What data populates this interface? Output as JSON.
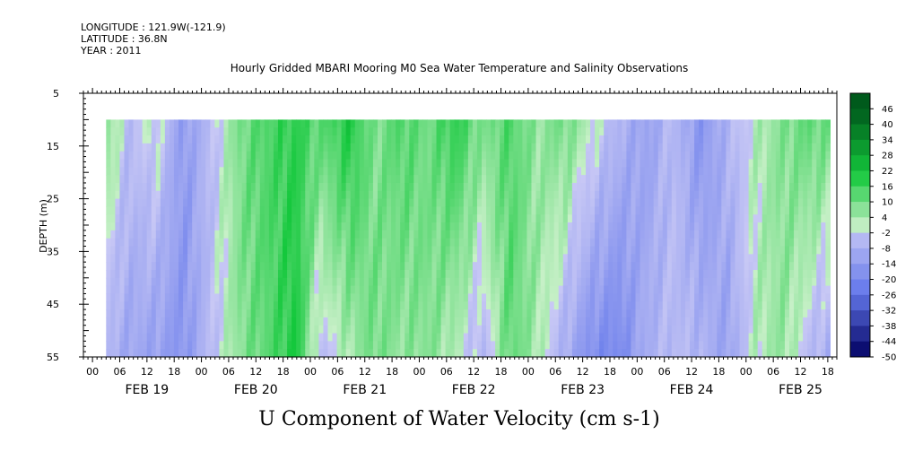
{
  "header": {
    "longitude": "LONGITUDE : 121.9W(-121.9)",
    "latitude": "LATITUDE : 36.8N",
    "year": "YEAR : 2011"
  },
  "chart_data": {
    "type": "heatmap",
    "title": "Hourly Gridded MBARI Mooring M0 Sea Water Temperature and Salinity Observations",
    "xlabel": "U Component of Water Velocity (cm s-1)",
    "ylabel": "DEPTH (m)",
    "ylim": [
      55,
      5
    ],
    "y_ticks": [
      5,
      15,
      25,
      35,
      45,
      55
    ],
    "data_depth_range": [
      10,
      55
    ],
    "x_hour_ticks": [
      "00",
      "06",
      "12",
      "18",
      "00",
      "06",
      "12",
      "18",
      "00",
      "06",
      "12",
      "18",
      "00",
      "06",
      "12",
      "18",
      "00",
      "06",
      "12",
      "18",
      "00",
      "06",
      "12",
      "18",
      "00",
      "06",
      "12",
      "18"
    ],
    "x_day_labels": [
      "FEB 19",
      "FEB 20",
      "FEB 21",
      "FEB 22",
      "FEB 23",
      "FEB 24",
      "FEB 25"
    ],
    "time_range_hours": [
      -2,
      164
    ],
    "data_start_hour": 3,
    "data_end_hour": 162.5,
    "colorbar": {
      "levels": [
        46,
        40,
        34,
        28,
        22,
        16,
        10,
        4,
        -2,
        -8,
        -14,
        -20,
        -26,
        -32,
        -38,
        -44,
        -50
      ],
      "max_color": "#005a1c",
      "zero_color": "#c8f0c8",
      "min_color": "#000060"
    },
    "approx_profile": {
      "description_hours": [
        3,
        8,
        14,
        20,
        26,
        33,
        38,
        45,
        50,
        57,
        62,
        68,
        74,
        80,
        86,
        92,
        98,
        104,
        110,
        116,
        122,
        128,
        134,
        140,
        146,
        152,
        158,
        162
      ],
      "surface_u": [
        8,
        -4,
        2,
        -14,
        -4,
        10,
        14,
        18,
        12,
        20,
        8,
        14,
        10,
        18,
        8,
        14,
        6,
        10,
        2,
        -6,
        -12,
        -4,
        -16,
        -6,
        2,
        8,
        12,
        10
      ],
      "bottom_u": [
        -6,
        -10,
        -12,
        -16,
        -4,
        8,
        12,
        20,
        -4,
        4,
        10,
        6,
        8,
        2,
        -6,
        12,
        4,
        -8,
        -18,
        -20,
        -8,
        -4,
        -6,
        -12,
        2,
        6,
        -4,
        -8
      ]
    }
  }
}
